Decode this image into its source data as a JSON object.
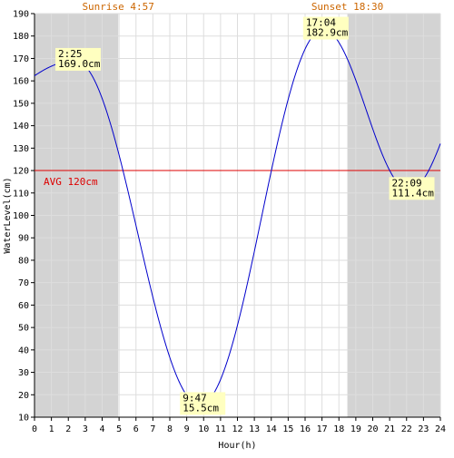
{
  "chart_data": {
    "type": "line",
    "xlabel": "Hour(h)",
    "ylabel": "WaterLevel(cm)",
    "xlim": [
      0,
      24
    ],
    "ylim": [
      10,
      190
    ],
    "x_ticks": [
      0,
      1,
      2,
      3,
      4,
      5,
      6,
      7,
      8,
      9,
      10,
      11,
      12,
      13,
      14,
      15,
      16,
      17,
      18,
      19,
      20,
      21,
      22,
      23,
      24
    ],
    "y_ticks": [
      10,
      20,
      30,
      40,
      50,
      60,
      70,
      80,
      90,
      100,
      110,
      120,
      130,
      140,
      150,
      160,
      170,
      180,
      190
    ],
    "grid": true,
    "sunrise": {
      "label": "Sunrise 4:57",
      "hour": 4.95
    },
    "sunset": {
      "label": "Sunset 18:30",
      "hour": 18.5
    },
    "average": {
      "label": "AVG 120cm",
      "value": 120
    },
    "extrema": [
      {
        "hour": 2.4167,
        "value": 169.0,
        "time": "2:25",
        "level": "169.0cm"
      },
      {
        "hour": 9.7833,
        "value": 15.5,
        "time": "9:47",
        "level": "15.5cm"
      },
      {
        "hour": 17.0667,
        "value": 182.9,
        "time": "17:04",
        "level": "182.9cm"
      },
      {
        "hour": 22.15,
        "value": 111.4,
        "time": "22:09",
        "level": "111.4cm"
      }
    ],
    "series": [
      {
        "x_start": 0,
        "value_at_start": 148,
        "x_end": 24,
        "value_at_end": 132
      }
    ],
    "colors": {
      "night": "#d3d3d3",
      "grid": "#dddddd",
      "line": "#0000cc",
      "avg": "#dd0000",
      "sun_label": "#cc6600",
      "annotation_bg": "#ffffc0"
    }
  }
}
